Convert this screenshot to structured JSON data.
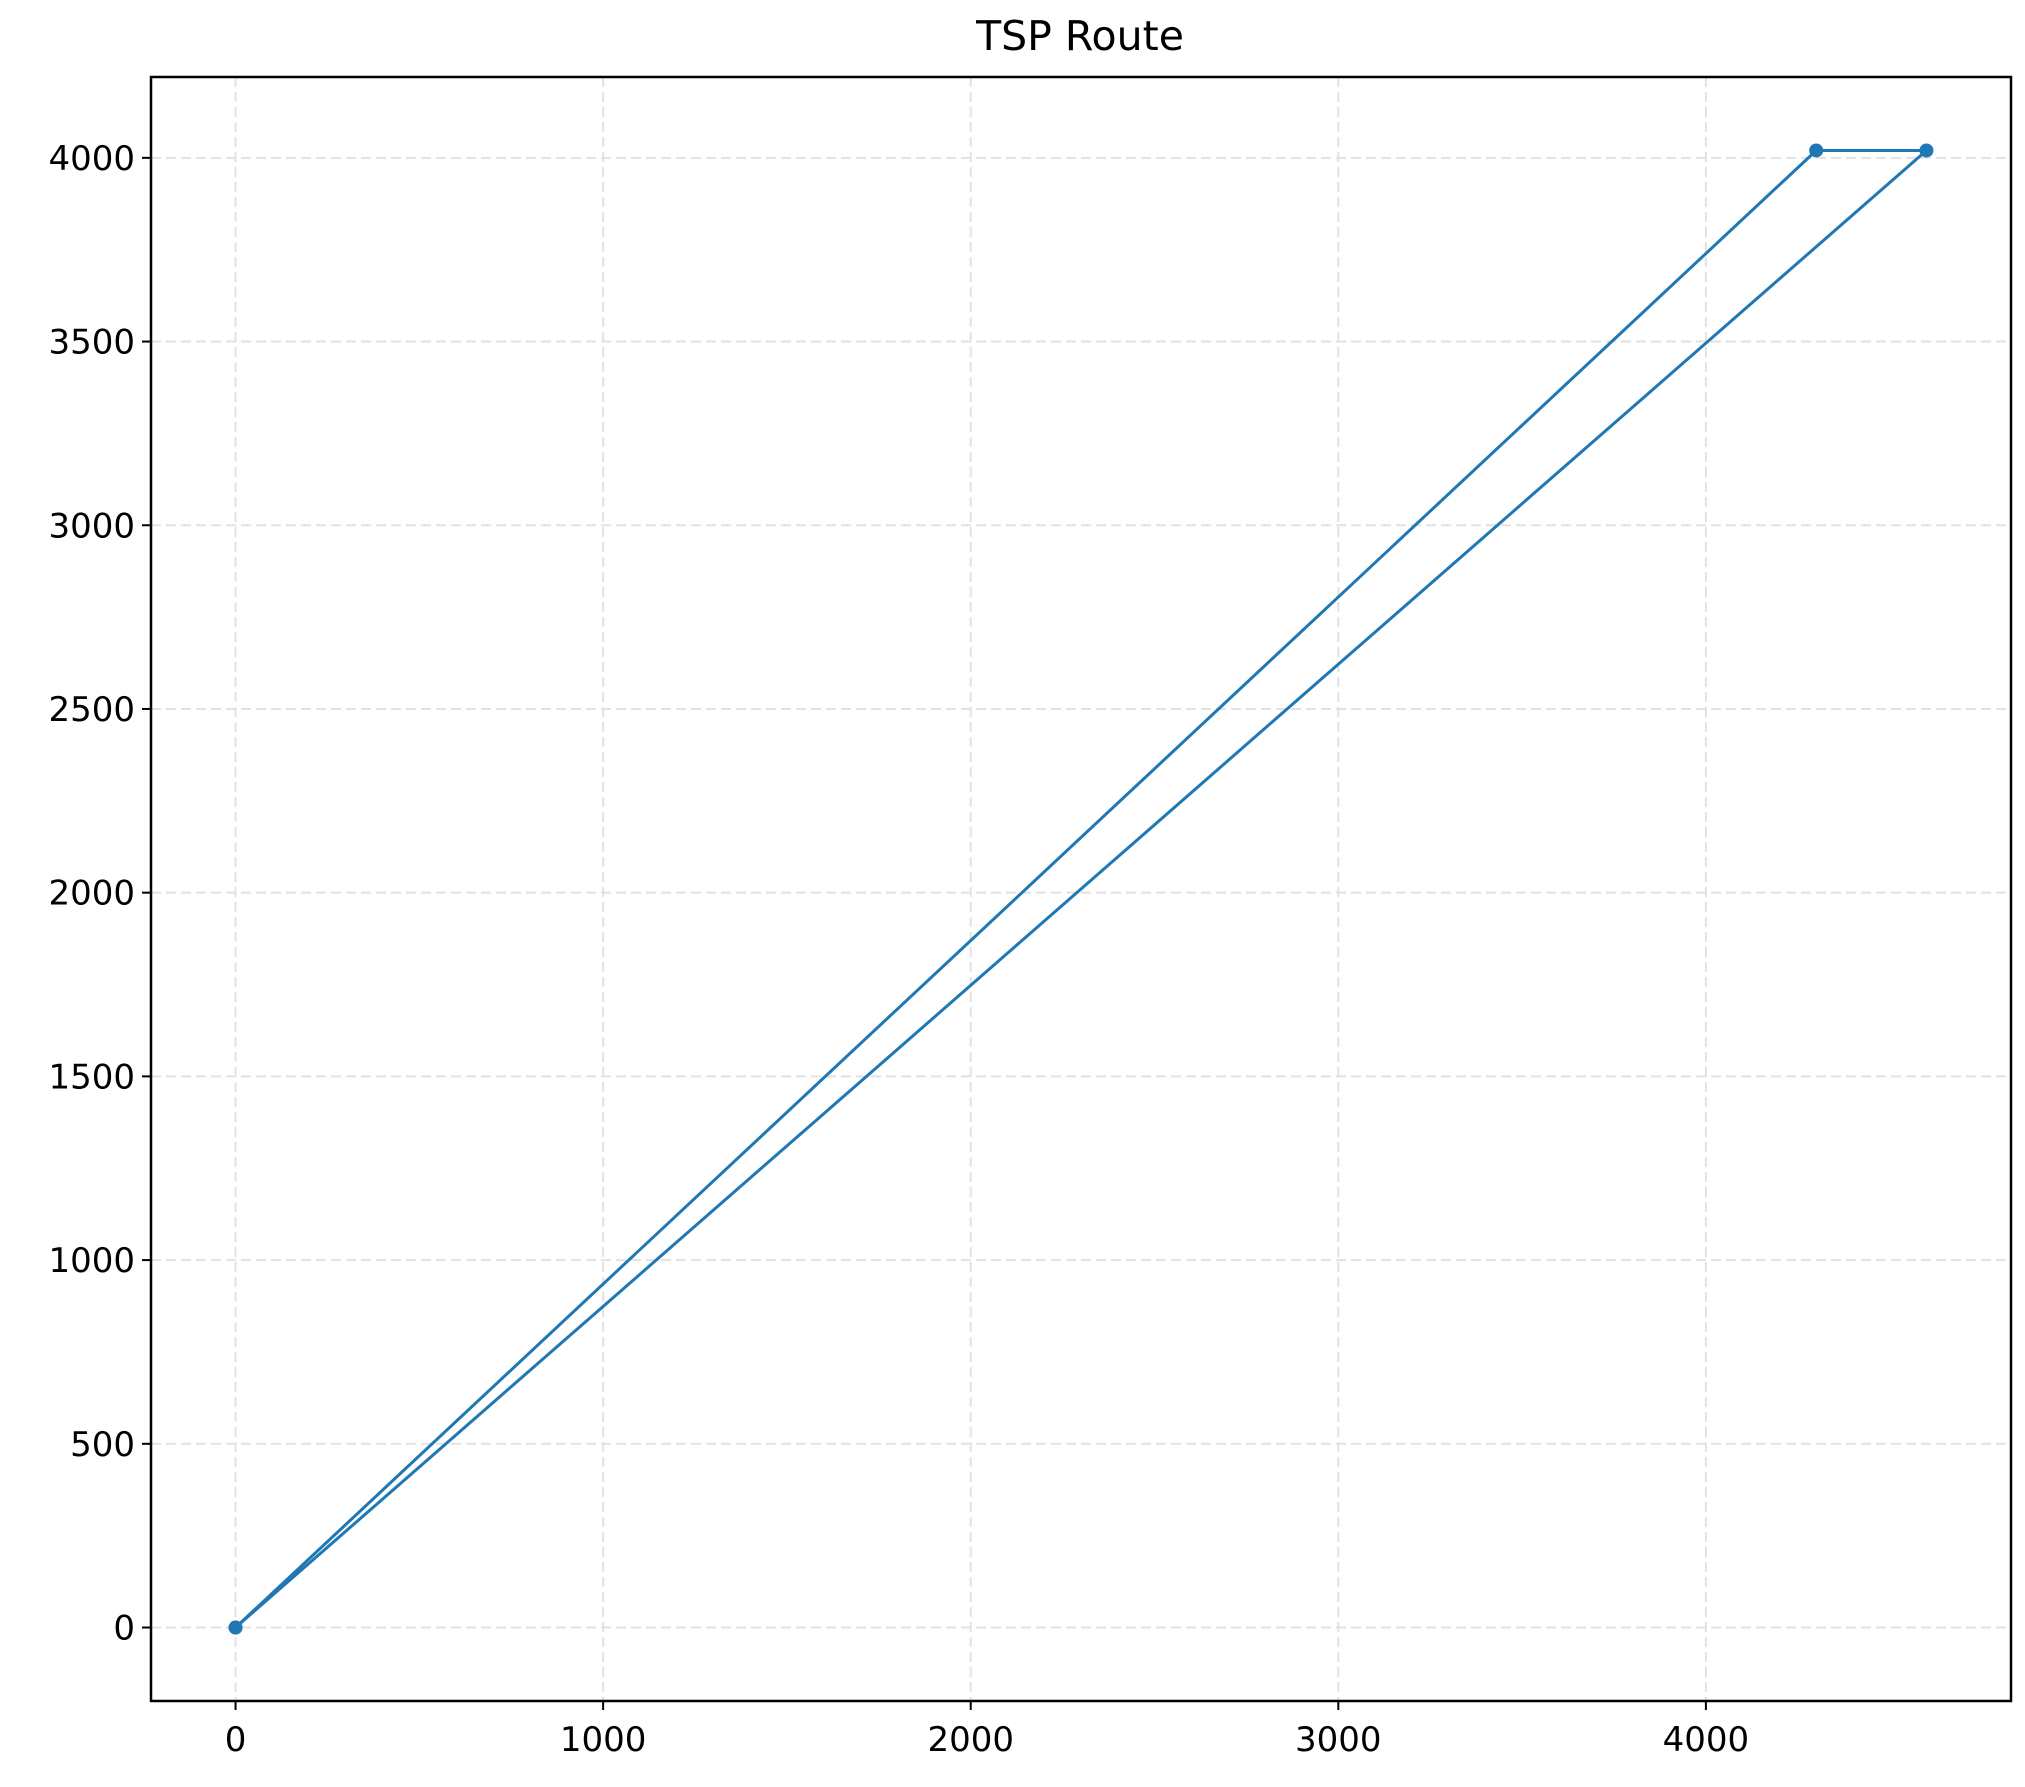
{
  "chart_data": {
    "type": "line",
    "title": "TSP Route",
    "xlabel": "",
    "ylabel": "",
    "xlim": [
      -230,
      4830
    ],
    "ylim": [
      -200,
      4220
    ],
    "xticks": [
      0,
      1000,
      2000,
      3000,
      4000
    ],
    "yticks": [
      0,
      500,
      1000,
      1500,
      2000,
      2500,
      3000,
      3500,
      4000
    ],
    "grid": true,
    "series": [
      {
        "color": "#1f77b4",
        "marker": "circle",
        "x": [
          0,
          4300,
          4600,
          0
        ],
        "y": [
          0,
          4020,
          4020,
          0
        ]
      }
    ]
  }
}
